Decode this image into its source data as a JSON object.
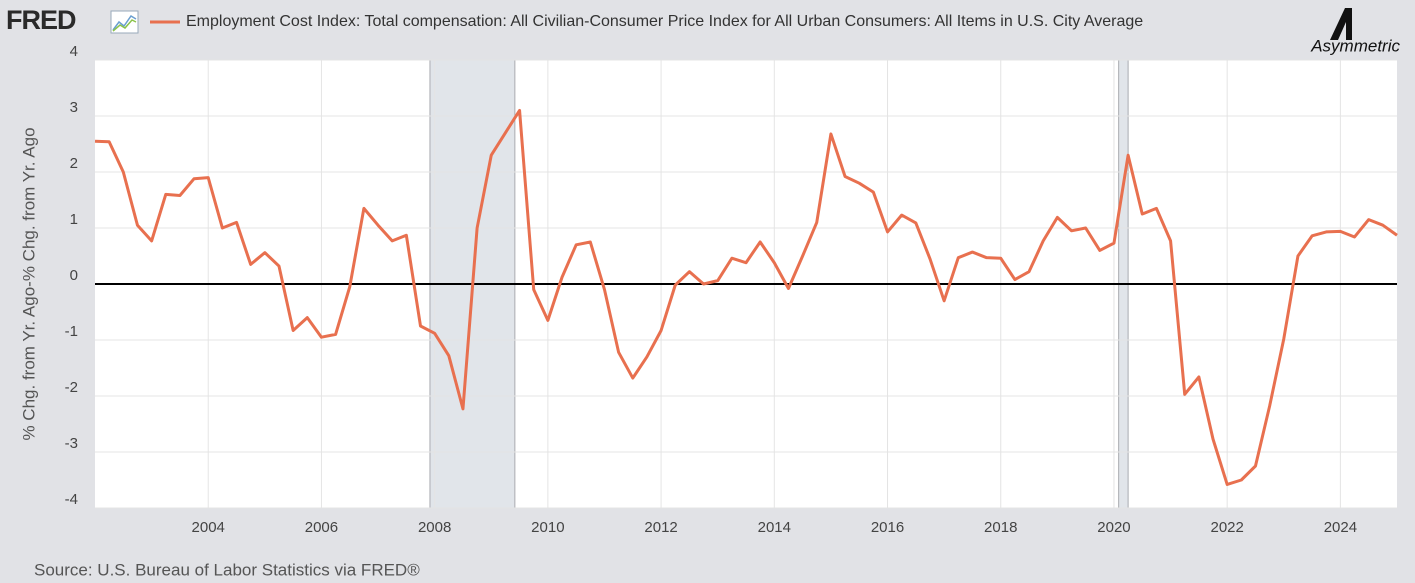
{
  "chart_data": {
    "type": "line",
    "logo": "FRED",
    "watermark": "Asymmetric",
    "y_label": "% Chg. from Yr. Ago-% Chg. from Yr. Ago",
    "source": "Source: U.S. Bureau of Labor Statistics via FRED®",
    "x": [
      2002,
      2002.25,
      2002.5,
      2002.75,
      2003,
      2003.25,
      2003.5,
      2003.75,
      2004,
      2004.25,
      2004.5,
      2004.75,
      2005,
      2005.25,
      2005.5,
      2005.75,
      2006,
      2006.25,
      2006.5,
      2006.75,
      2007,
      2007.25,
      2007.5,
      2007.75,
      2008,
      2008.25,
      2008.5,
      2008.75,
      2009,
      2009.25,
      2009.5,
      2009.75,
      2010,
      2010.25,
      2010.5,
      2010.75,
      2011,
      2011.25,
      2011.5,
      2011.75,
      2012,
      2012.25,
      2012.5,
      2012.75,
      2013,
      2013.25,
      2013.5,
      2013.75,
      2014,
      2014.25,
      2014.5,
      2014.75,
      2015,
      2015.25,
      2015.5,
      2015.75,
      2016,
      2016.25,
      2016.5,
      2016.75,
      2017,
      2017.25,
      2017.5,
      2017.75,
      2018,
      2018.25,
      2018.5,
      2018.75,
      2019,
      2019.25,
      2019.5,
      2019.75,
      2020,
      2020.25,
      2020.5,
      2020.75,
      2021,
      2021.25,
      2021.5,
      2021.75,
      2022,
      2022.25,
      2022.5,
      2022.75,
      2023,
      2023.25,
      2023.5,
      2023.75,
      2024,
      2024.25,
      2024.5,
      2024.75,
      2025
    ],
    "series": [
      {
        "name": "Employment Cost Index: Total compensation: All Civilian-Consumer Price Index for All Urban Consumers: All Items in U.S. City Average",
        "color": "#e8704f",
        "values": [
          2.55,
          2.54,
          2.0,
          1.05,
          0.77,
          1.6,
          1.58,
          1.88,
          1.9,
          1.0,
          1.1,
          0.35,
          0.56,
          0.32,
          -0.83,
          -0.6,
          -0.95,
          -0.9,
          -0.05,
          1.35,
          1.05,
          0.77,
          0.87,
          -0.75,
          -0.88,
          -1.28,
          -2.23,
          1.0,
          2.3,
          2.7,
          3.1,
          -0.1,
          -0.65,
          0.12,
          0.7,
          0.75,
          -0.1,
          -1.22,
          -1.68,
          -1.3,
          -0.83,
          -0.02,
          0.22,
          0.0,
          0.06,
          0.46,
          0.38,
          0.75,
          0.38,
          -0.08,
          0.5,
          1.1,
          2.68,
          1.92,
          1.8,
          1.64,
          0.93,
          1.23,
          1.09,
          0.45,
          -0.3,
          0.47,
          0.57,
          0.47,
          0.46,
          0.08,
          0.22,
          0.77,
          1.19,
          0.95,
          1.0,
          0.6,
          0.73,
          2.3,
          1.25,
          1.35,
          0.77,
          -1.97,
          -1.66,
          -2.77,
          -3.58,
          -3.5,
          -3.25,
          -2.18,
          -0.98,
          0.5,
          0.86,
          0.93,
          0.94,
          0.84,
          1.15,
          1.05,
          0.87
        ]
      }
    ],
    "recessions": [
      [
        2007.917,
        2009.417
      ],
      [
        2020.083,
        2020.25
      ]
    ],
    "xlim": [
      2002,
      2025
    ],
    "xticks": [
      2004,
      2006,
      2008,
      2010,
      2012,
      2014,
      2016,
      2018,
      2020,
      2022,
      2024
    ],
    "ylim": [
      -4,
      4
    ],
    "yticks": [
      -4,
      -3,
      -2,
      -1,
      0,
      1,
      2,
      3,
      4
    ],
    "grid": true,
    "zero_line": true
  }
}
